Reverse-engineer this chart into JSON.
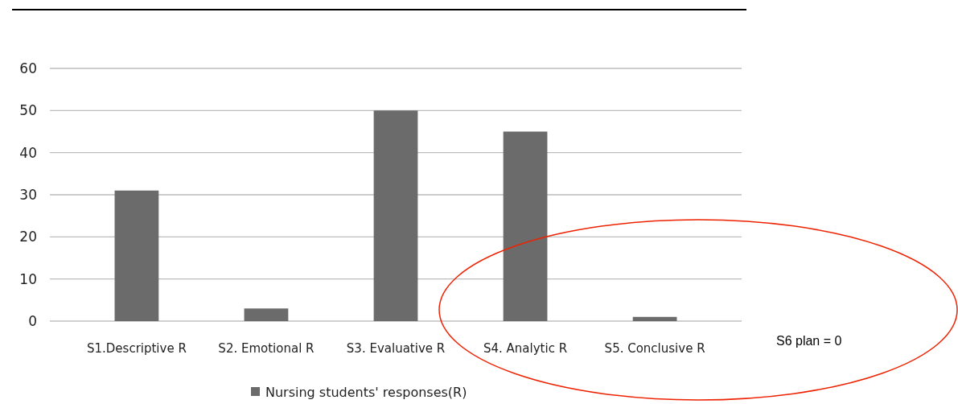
{
  "chart_data": {
    "type": "bar",
    "categories": [
      "S1.Descriptive R",
      "S2. Emotional R",
      "S3. Evaluative R",
      "S4. Analytic R",
      "S5. Conclusive R"
    ],
    "series": [
      {
        "name": "Nursing students' responses(R)",
        "color": "#6b6b6b",
        "values": [
          31,
          3,
          50,
          45,
          1
        ]
      }
    ],
    "ylim": [
      0,
      60
    ],
    "yticks": [
      0,
      10,
      20,
      30,
      40,
      50,
      60
    ],
    "grid": "y",
    "legend": "bottom",
    "annotations": [
      "S6 plan = 0"
    ]
  }
}
